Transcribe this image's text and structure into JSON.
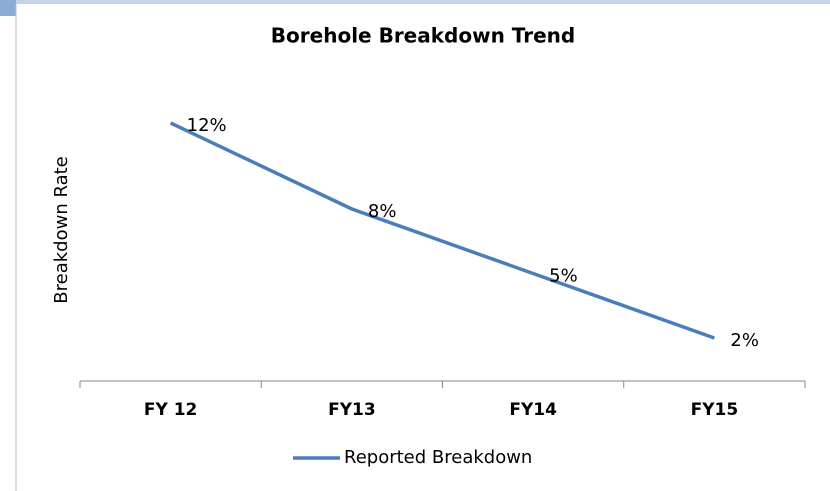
{
  "chart_data": {
    "type": "line",
    "title": "Borehole Breakdown Trend",
    "y_label": "Breakdown Rate",
    "categories": [
      "FY 12",
      "FY13",
      "FY14",
      "FY15"
    ],
    "series": [
      {
        "name": "Reported Breakdown",
        "color": "#4a7ebb",
        "values": [
          12,
          8,
          5,
          2
        ],
        "value_labels": [
          "12%",
          "8%",
          "5%",
          "2%"
        ]
      }
    ],
    "ylim": [
      0,
      14
    ],
    "legend": "bottom"
  }
}
